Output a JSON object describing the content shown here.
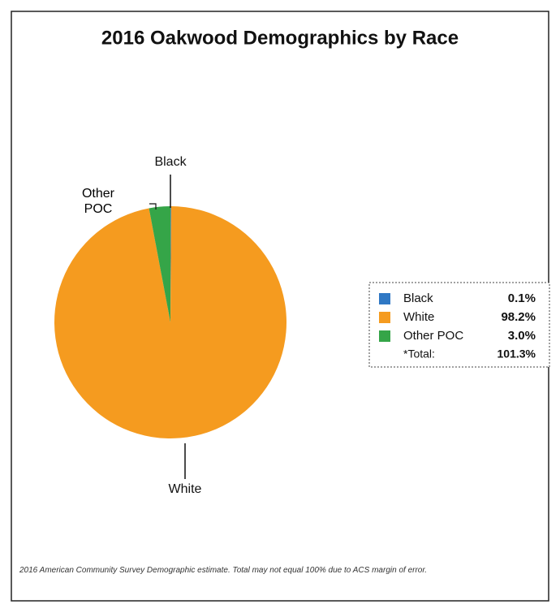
{
  "chart_data": {
    "type": "pie",
    "title": "2016 Oakwood Demographics by Race",
    "categories": [
      "Black",
      "White",
      "Other POC"
    ],
    "values": [
      0.1,
      98.2,
      3.0
    ],
    "value_labels": [
      "0.1%",
      "98.2%",
      "3.0%"
    ],
    "colors": [
      "#2f78c4",
      "#f59b1f",
      "#35a548"
    ],
    "total_label": "*Total:",
    "total": "101.3%",
    "footnote": "2016 American Community Survey Demographic estimate. Total may not equal 100% due to ACS margin of error."
  }
}
